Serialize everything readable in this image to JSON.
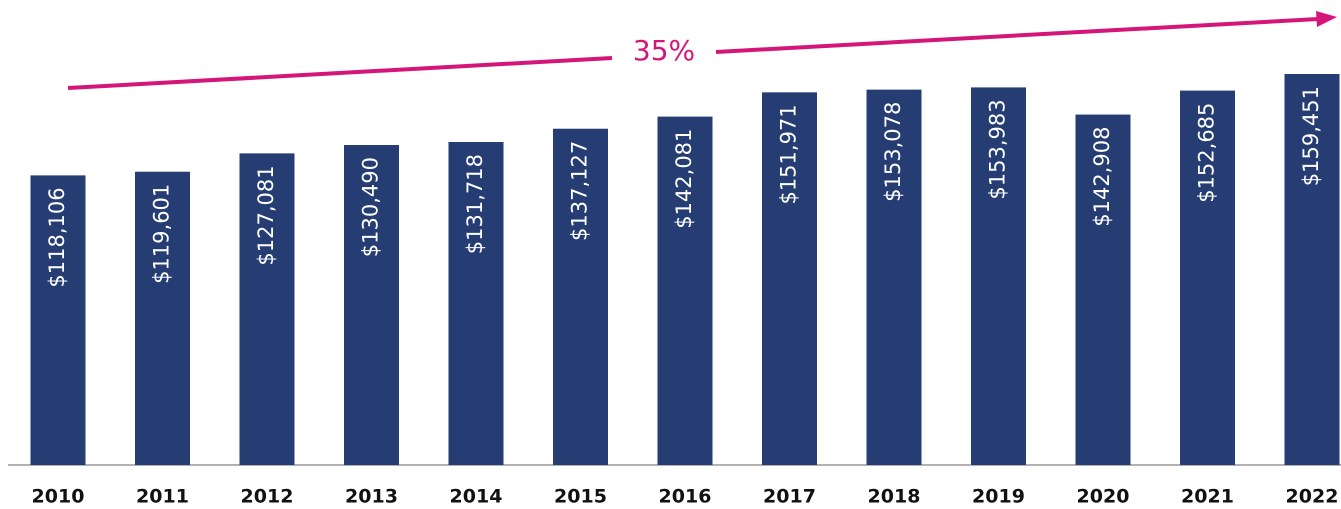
{
  "chart_data": {
    "type": "bar",
    "annotation": "35%",
    "categories": [
      "2010",
      "2011",
      "2012",
      "2013",
      "2014",
      "2015",
      "2016",
      "2017",
      "2018",
      "2019",
      "2020",
      "2021",
      "2022"
    ],
    "values": [
      118106,
      119601,
      127081,
      130490,
      131718,
      137127,
      142081,
      151971,
      153078,
      153983,
      142908,
      152685,
      159451
    ],
    "value_labels": [
      "$118,106",
      "$119,601",
      "$127,081",
      "$130,490",
      "$131,718",
      "$137,127",
      "$142,081",
      "$151,971",
      "$153,078",
      "$153,983",
      "$142,908",
      "$152,685",
      "$159,451"
    ],
    "color": "#253d73"
  }
}
